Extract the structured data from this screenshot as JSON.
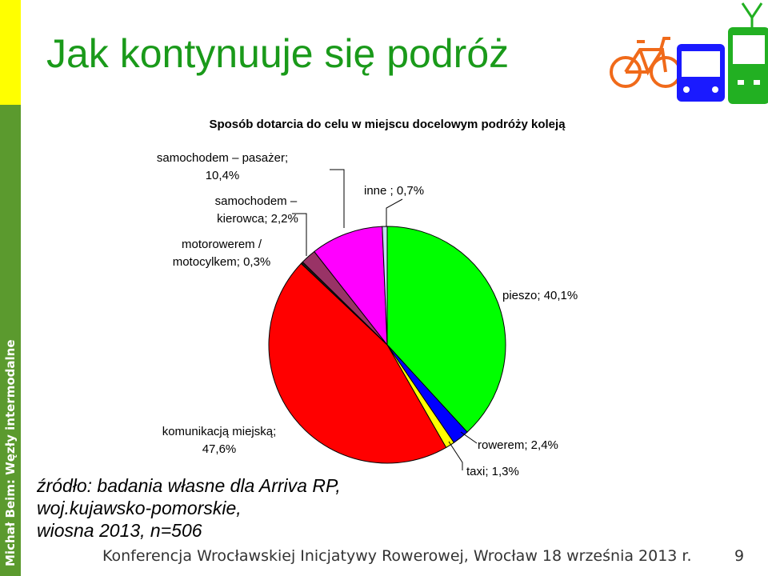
{
  "slide": {
    "title": "Jak kontynuuje się podróż",
    "sidebar_text": "Michał Beim: Węzły intermodalne",
    "source": {
      "line1": "źródło: badania własne dla Arriva RP,",
      "line2": "woj.kujawsko-pomorskie,",
      "line3": "wiosna 2013, n=506"
    },
    "footer": "Konferencja Wrocławskiej Inicjatywy Rowerowej, Wrocław 18 września 2013 r.",
    "page_number": "9",
    "icons": [
      "bicycle-icon",
      "bus-icon",
      "tram-icon"
    ]
  },
  "chart_data": {
    "type": "pie",
    "title": "Sposób dotarcia do celu w miejscu docelowym podróży koleją",
    "slices": [
      {
        "label_lines": [
          "pieszo; 40,1%"
        ],
        "value": 40.1,
        "color": "#00ff00"
      },
      {
        "label_lines": [
          "rowerem; 2,4%"
        ],
        "value": 2.4,
        "color": "#0000ff"
      },
      {
        "label_lines": [
          "taxi; 1,3%"
        ],
        "value": 1.3,
        "color": "#ffff00"
      },
      {
        "label_lines": [
          "komunikacją miejską;",
          "47,6%"
        ],
        "value": 47.6,
        "color": "#ff0000"
      },
      {
        "label_lines": [
          "motorowerem /",
          "motocylkem; 0,3%"
        ],
        "value": 0.3,
        "color": "#1a1a1a"
      },
      {
        "label_lines": [
          "samochodem – ",
          "kierowca; 2,2%"
        ],
        "value": 2.2,
        "color": "#993366"
      },
      {
        "label_lines": [
          "samochodem – pasażer;",
          "10,4%"
        ],
        "value": 10.4,
        "color": "#ff00ff"
      },
      {
        "label_lines": [
          "inne ; 0,7%"
        ],
        "value": 0.7,
        "color": "#c0e0f0"
      }
    ]
  }
}
